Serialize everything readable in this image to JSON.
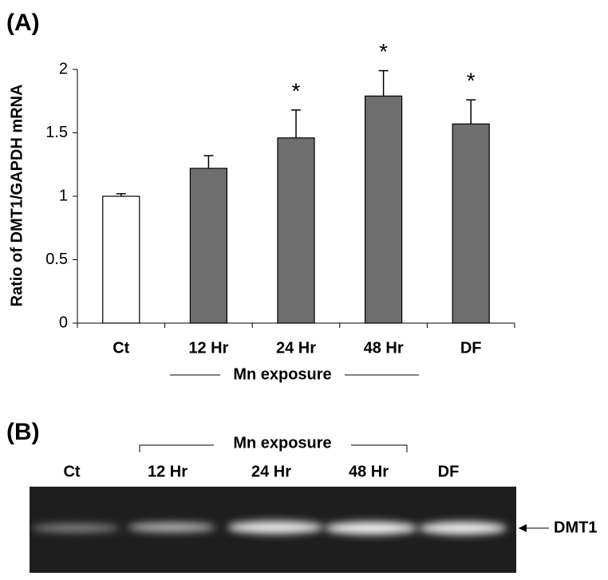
{
  "chart_data": {
    "type": "bar",
    "panel_label": "(A)",
    "y_label": "Ratio of DMT1/GAPDH mRNA",
    "categories": [
      "Ct",
      "12 Hr",
      "24 Hr",
      "48 Hr",
      "DF"
    ],
    "values": [
      1.0,
      1.22,
      1.46,
      1.79,
      1.57
    ],
    "errors": [
      0.02,
      0.1,
      0.22,
      0.2,
      0.19
    ],
    "colors": [
      "#ffffff",
      "#6e6e6e",
      "#6e6e6e",
      "#6e6e6e",
      "#6e6e6e"
    ],
    "significance": [
      null,
      null,
      "*",
      "*",
      "*"
    ],
    "group_label": "Mn exposure",
    "ylim": [
      0,
      2
    ],
    "yticks": [
      0,
      0.5,
      1,
      1.5,
      2
    ]
  },
  "gel": {
    "panel_label": "(B)",
    "group_label": "Mn exposure",
    "lanes": [
      "Ct",
      "12 Hr",
      "24 Hr",
      "48 Hr",
      "DF"
    ],
    "band_label": "DMT1"
  }
}
